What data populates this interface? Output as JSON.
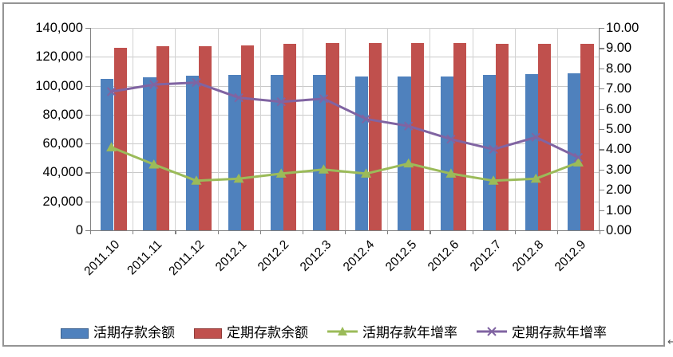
{
  "page": {
    "background": "#ffffff",
    "frame_border_color": "#949494",
    "paragraph_mark": "↵"
  },
  "chart_data": {
    "type": "bar",
    "subtype": "combo bar+line, dual axis",
    "title": "",
    "xlabel": "",
    "ylabel_left": "",
    "ylabel_right": "",
    "grid": "horizontal and vertical light-gray gridlines",
    "legend_position": "bottom",
    "categories": [
      "2011.10",
      "2011.11",
      "2011.12",
      "2012.1",
      "2012.2",
      "2012.3",
      "2012.4",
      "2012.5",
      "2012.6",
      "2012.7",
      "2012.8",
      "2012.9"
    ],
    "series": [
      {
        "name": "活期存款余额",
        "type": "bar",
        "axis": "left",
        "color": "#4F81BD",
        "values": [
          105000,
          105800,
          107000,
          107300,
          107600,
          107300,
          106500,
          106200,
          106500,
          107300,
          108300,
          108700
        ]
      },
      {
        "name": "定期存款余额",
        "type": "bar",
        "axis": "left",
        "color": "#C0504D",
        "values": [
          126200,
          127300,
          127400,
          128000,
          128800,
          129400,
          129400,
          129500,
          129500,
          129200,
          129100,
          129200
        ]
      },
      {
        "name": "活期存款年增率",
        "type": "line",
        "marker": "triangle",
        "axis": "right",
        "color": "#9BBB59",
        "values": [
          4.1,
          3.25,
          2.45,
          2.55,
          2.8,
          3.0,
          2.8,
          3.3,
          2.8,
          2.45,
          2.55,
          3.35
        ]
      },
      {
        "name": "定期存款年增率",
        "type": "line",
        "marker": "x",
        "axis": "right",
        "color": "#8064A2",
        "values": [
          6.85,
          7.2,
          7.3,
          6.55,
          6.35,
          6.5,
          5.5,
          5.15,
          4.5,
          4.0,
          4.6,
          3.6
        ]
      }
    ],
    "left_axis": {
      "min": 0,
      "max": 140000,
      "step": 20000,
      "tick_labels": [
        "0",
        "20,000",
        "40,000",
        "60,000",
        "80,000",
        "100,000",
        "120,000",
        "140,000"
      ]
    },
    "right_axis": {
      "min": 0,
      "max": 10,
      "step": 1,
      "tick_labels": [
        "0.00",
        "1.00",
        "2.00",
        "3.00",
        "4.00",
        "5.00",
        "6.00",
        "7.00",
        "8.00",
        "9.00",
        "10.00"
      ]
    },
    "colors": {
      "gridline": "#c9c9c9",
      "axis": "#808080",
      "text": "#000000"
    }
  }
}
